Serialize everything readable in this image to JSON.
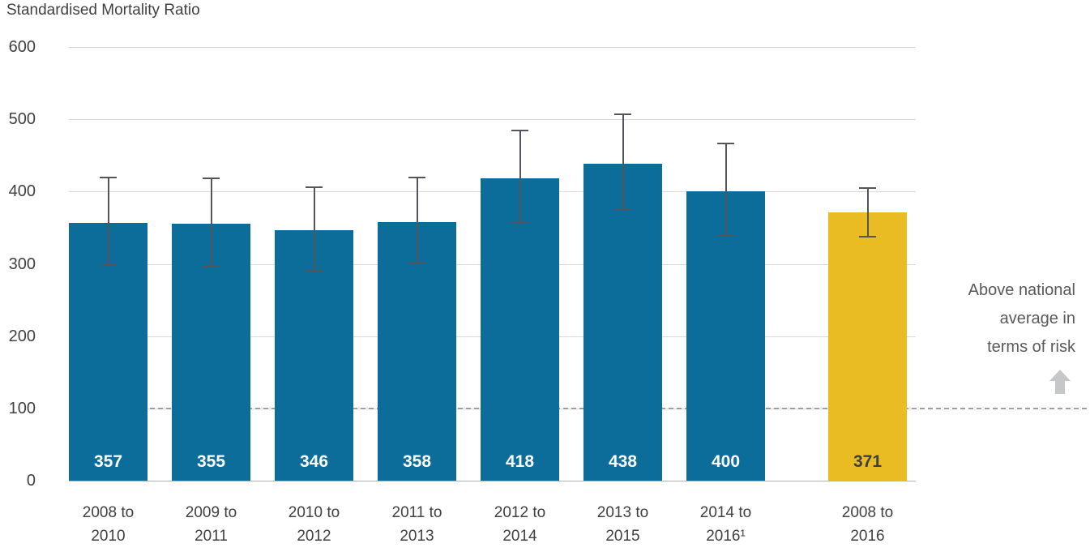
{
  "chart_data": {
    "type": "bar",
    "title": "Standardised Mortality Ratio",
    "categories": [
      [
        "2008 to",
        "2010"
      ],
      [
        "2009 to",
        "2011"
      ],
      [
        "2010 to",
        "2012"
      ],
      [
        "2011 to",
        "2013"
      ],
      [
        "2012 to",
        "2014"
      ],
      [
        "2013 to",
        "2015"
      ],
      [
        "2014 to",
        "2016¹"
      ],
      [
        "2008 to",
        "2016"
      ]
    ],
    "values": [
      357,
      355,
      346,
      358,
      418,
      438,
      400,
      371
    ],
    "error_low": [
      298,
      296,
      291,
      302,
      357,
      376,
      340,
      338
    ],
    "error_high": [
      420,
      418,
      406,
      420,
      484,
      507,
      466,
      405
    ],
    "bar_colors": [
      "#0d6d9a",
      "#0d6d9a",
      "#0d6d9a",
      "#0d6d9a",
      "#0d6d9a",
      "#0d6d9a",
      "#0d6d9a",
      "#e8bc22"
    ],
    "value_label_colors": [
      "#ffffff",
      "#ffffff",
      "#ffffff",
      "#ffffff",
      "#ffffff",
      "#ffffff",
      "#ffffff",
      "#3f3f41"
    ],
    "ylim": [
      0,
      600
    ],
    "yticks": [
      0,
      100,
      200,
      300,
      400,
      500,
      600
    ],
    "reference_line": 100,
    "grid": true,
    "legend": "none",
    "annotation": {
      "lines": [
        "Above national",
        "average in",
        "terms of risk"
      ],
      "arrow": "up-arrow"
    }
  },
  "colors": {
    "bar_blue": "#0d6d9a",
    "bar_yellow": "#e8bc22",
    "gridline": "#d9d9d9",
    "reference_dash": "#9aa0a5",
    "error_bar": "#54555a",
    "annotation_text": "#58595b",
    "arrow_gray": "#c6c7c9"
  }
}
